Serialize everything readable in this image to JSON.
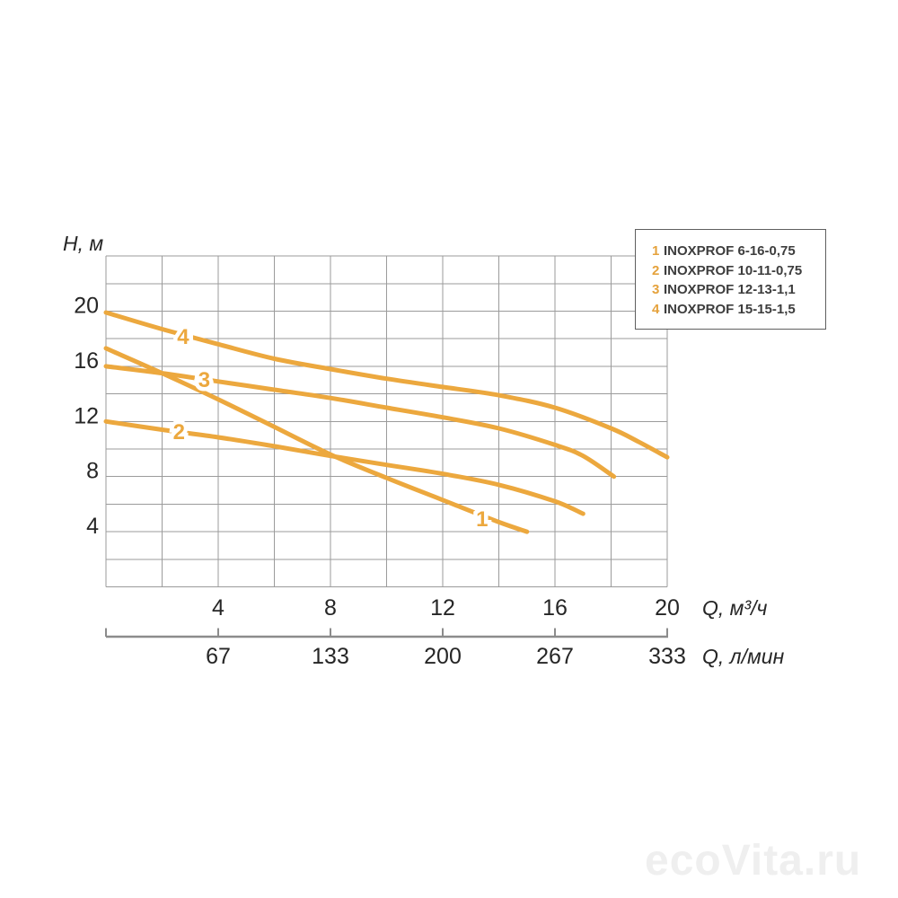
{
  "chart_data": {
    "type": "line",
    "title": "",
    "grid": true,
    "legend_position": "top-right",
    "curve_color": "#ECA83E",
    "y_axis": {
      "label": "H, м",
      "range": [
        0,
        24
      ],
      "grid_step": 2,
      "tick_labels": [
        20,
        16,
        12,
        8,
        4
      ]
    },
    "x_axis": {
      "label": "Q, м³/ч",
      "range": [
        0,
        20
      ],
      "grid_step": 2,
      "tick_labels": [
        4,
        8,
        12,
        16,
        20
      ]
    },
    "x_axis_secondary": {
      "label": "Q, л/мин",
      "tick_labels": [
        67,
        133,
        200,
        267,
        333
      ],
      "tick_positions_primary": [
        4,
        8,
        12,
        16,
        20
      ],
      "extra_tick_positions_primary": [
        0,
        20
      ]
    },
    "series": [
      {
        "id": "1",
        "name": "INOXPROF 6-16-0,75",
        "label_at": {
          "q": 13.4,
          "h": 4.9
        },
        "points": [
          [
            0,
            17.3
          ],
          [
            2,
            15.5
          ],
          [
            4,
            13.6
          ],
          [
            6,
            11.6
          ],
          [
            8,
            9.6
          ],
          [
            10,
            7.9
          ],
          [
            12,
            6.3
          ],
          [
            14,
            4.7
          ],
          [
            15,
            4.0
          ]
        ]
      },
      {
        "id": "2",
        "name": "INOXPROF 10-11-0,75",
        "label_at": {
          "q": 2.6,
          "h": 11.2
        },
        "points": [
          [
            0,
            12.0
          ],
          [
            2,
            11.4
          ],
          [
            4,
            10.85
          ],
          [
            6,
            10.2
          ],
          [
            8,
            9.5
          ],
          [
            10,
            8.85
          ],
          [
            12,
            8.2
          ],
          [
            14,
            7.4
          ],
          [
            16,
            6.2
          ],
          [
            17,
            5.3
          ]
        ]
      },
      {
        "id": "3",
        "name": "INOXPROF 12-13-1,1",
        "label_at": {
          "q": 3.5,
          "h": 15.0
        },
        "points": [
          [
            0,
            16.0
          ],
          [
            2,
            15.5
          ],
          [
            4,
            14.9
          ],
          [
            6,
            14.3
          ],
          [
            8,
            13.7
          ],
          [
            10,
            13.0
          ],
          [
            12,
            12.3
          ],
          [
            14,
            11.5
          ],
          [
            16,
            10.3
          ],
          [
            17,
            9.5
          ],
          [
            18.1,
            8.0
          ]
        ]
      },
      {
        "id": "4",
        "name": "INOXPROF 15-15-1,5",
        "label_at": {
          "q": 2.75,
          "h": 18.1
        },
        "points": [
          [
            0,
            19.9
          ],
          [
            2,
            18.7
          ],
          [
            4,
            17.6
          ],
          [
            6,
            16.55
          ],
          [
            8,
            15.8
          ],
          [
            10,
            15.1
          ],
          [
            12,
            14.5
          ],
          [
            14,
            13.9
          ],
          [
            16,
            13.0
          ],
          [
            18,
            11.5
          ],
          [
            19,
            10.5
          ],
          [
            20,
            9.4
          ]
        ]
      }
    ]
  },
  "legend": {
    "items": [
      {
        "num": "1",
        "label": "INOXPROF 6-16-0,75"
      },
      {
        "num": "2",
        "label": "INOXPROF 10-11-0,75"
      },
      {
        "num": "3",
        "label": "INOXPROF 12-13-1,1"
      },
      {
        "num": "4",
        "label": "INOXPROF 15-15-1,5"
      }
    ]
  },
  "watermark": "ecoVita.ru",
  "colors": {
    "accent_orange": "#ECA83E",
    "legend_num_orange": "#E5A23C",
    "grid_gray": "#9b9b9b",
    "axis_gray": "#8c8c8c",
    "text_dark": "#262626",
    "legend_text": "#3d3d3d",
    "watermark_gray": "#efefef"
  }
}
